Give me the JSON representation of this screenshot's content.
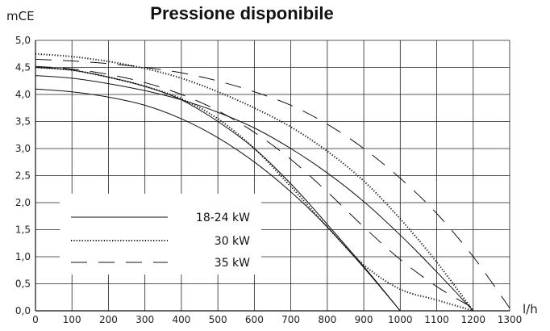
{
  "chart_data": {
    "type": "line",
    "title": "Pressione disponibile",
    "ylabel": "mCE",
    "xlabel": "l/h",
    "xlim": [
      0,
      1300
    ],
    "ylim": [
      0,
      5
    ],
    "xticks": [
      0,
      100,
      200,
      300,
      400,
      500,
      600,
      700,
      800,
      900,
      1000,
      1100,
      1200,
      1300
    ],
    "yticks": [
      0,
      0.5,
      1,
      1.5,
      2,
      2.5,
      3,
      3.5,
      4,
      4.5,
      5
    ],
    "ytick_labels": [
      "0,0",
      "0,5",
      "1,0",
      "1,5",
      "2,0",
      "2,5",
      "3,0",
      "3,5",
      "4,0",
      "4,5",
      "5,0"
    ],
    "grid": true,
    "legend_position": "left",
    "series": [
      {
        "name": "18-24 kW",
        "style": "solid",
        "curves": [
          {
            "x": [
              0,
              100,
              200,
              300,
              400,
              500,
              600,
              700,
              800,
              900,
              1000
            ],
            "y": [
              4.1,
              4.05,
              3.95,
              3.8,
              3.55,
              3.2,
              2.75,
              2.2,
              1.55,
              0.8,
              0.0
            ]
          },
          {
            "x": [
              0,
              100,
              200,
              300,
              400,
              500,
              600,
              700,
              800,
              900,
              1000,
              1100,
              1200
            ],
            "y": [
              4.35,
              4.3,
              4.2,
              4.07,
              3.9,
              3.67,
              3.38,
              3.0,
              2.55,
              2.02,
              1.4,
              0.72,
              0.0
            ]
          },
          {
            "x": [
              0,
              100,
              200,
              300,
              400,
              500,
              600,
              700,
              800,
              900,
              1000
            ],
            "y": [
              4.5,
              4.45,
              4.32,
              4.15,
              3.9,
              3.5,
              3.0,
              2.35,
              1.6,
              0.82,
              0.0
            ]
          }
        ]
      },
      {
        "name": "30 kW",
        "style": "dotted",
        "curves": [
          {
            "x": [
              0,
              100,
              200,
              300,
              400,
              500,
              600,
              700,
              800,
              900,
              1000,
              1100,
              1200
            ],
            "y": [
              4.75,
              4.7,
              4.61,
              4.48,
              4.3,
              4.05,
              3.75,
              3.4,
              2.95,
              2.4,
              1.7,
              0.9,
              0.0
            ]
          },
          {
            "x": [
              0,
              100,
              200,
              300,
              400,
              500,
              600,
              700,
              800,
              900,
              1000,
              1100,
              1200
            ],
            "y": [
              4.5,
              4.45,
              4.32,
              4.15,
              3.92,
              3.55,
              3.0,
              2.3,
              1.55,
              0.85,
              0.4,
              0.2,
              0.0
            ]
          }
        ]
      },
      {
        "name": "35 kW",
        "style": "dashed",
        "curves": [
          {
            "x": [
              0,
              100,
              200,
              300,
              400,
              500,
              600,
              700,
              800,
              900,
              1000,
              1100,
              1200,
              1300
            ],
            "y": [
              4.65,
              4.62,
              4.57,
              4.5,
              4.4,
              4.25,
              4.05,
              3.8,
              3.45,
              3.0,
              2.45,
              1.8,
              1.0,
              0.05
            ]
          },
          {
            "x": [
              0,
              100,
              200,
              300,
              400,
              500,
              600,
              700,
              800,
              900,
              1000,
              1100,
              1200
            ],
            "y": [
              4.52,
              4.47,
              4.37,
              4.22,
              4.0,
              3.7,
              3.3,
              2.8,
              2.2,
              1.55,
              0.95,
              0.45,
              0.05
            ]
          }
        ]
      }
    ]
  }
}
